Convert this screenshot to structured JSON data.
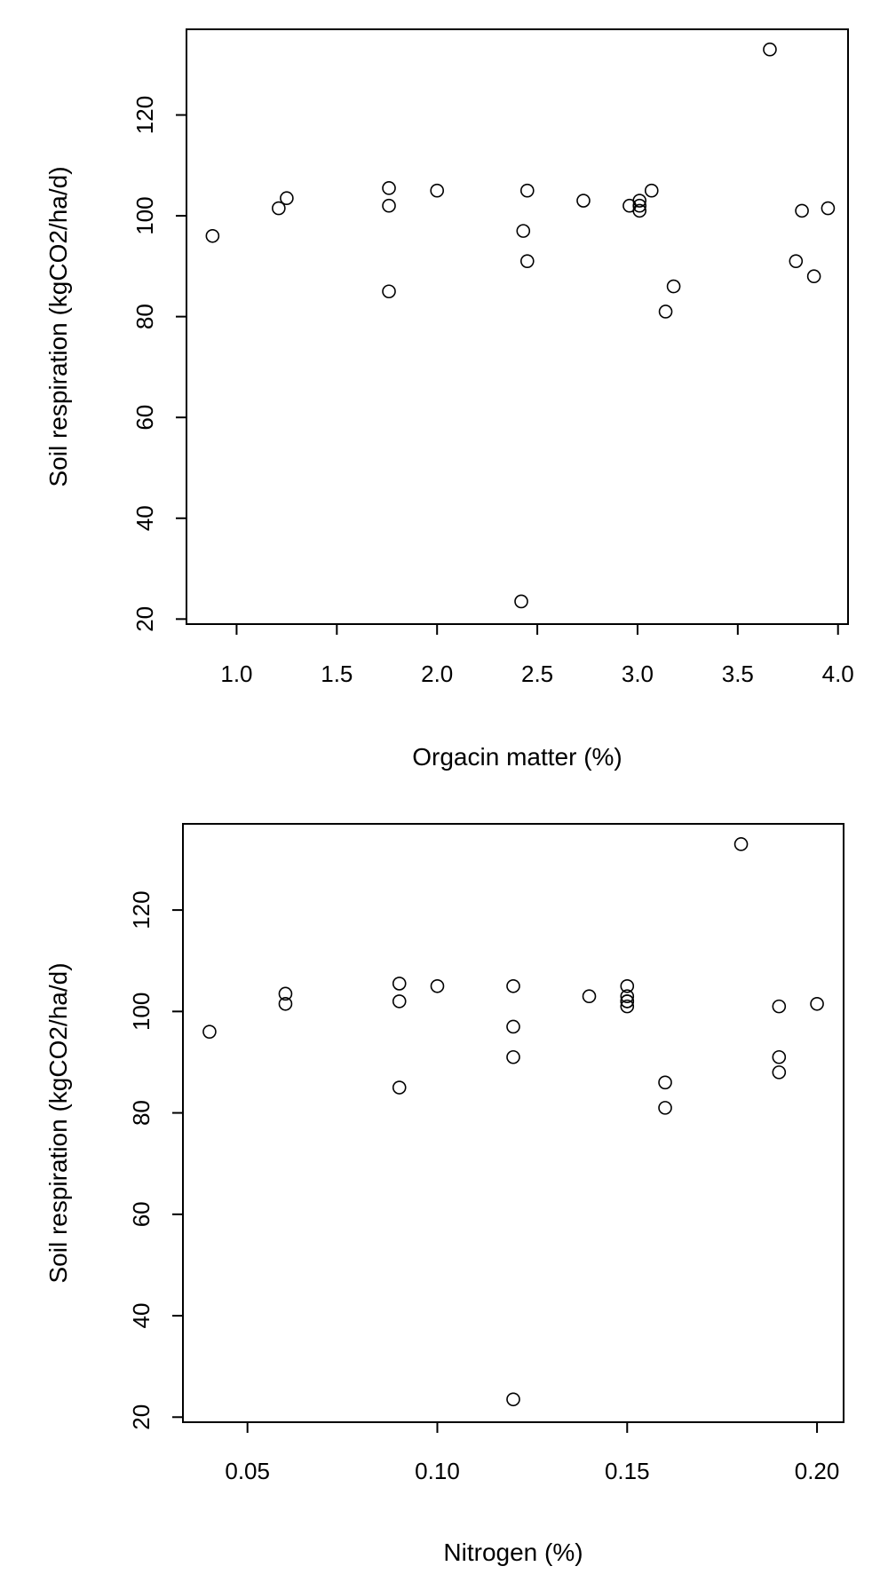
{
  "chart_data": [
    {
      "type": "scatter",
      "xlabel": "Orgacin matter (%)",
      "ylabel": "Soil respiration (kgCO2/ha/d)",
      "xlim": [
        0.75,
        4.05
      ],
      "ylim": [
        19,
        137
      ],
      "xticks": [
        1.0,
        1.5,
        2.0,
        2.5,
        3.0,
        3.5,
        4.0
      ],
      "xtick_labels": [
        "1.0",
        "1.5",
        "2.0",
        "2.5",
        "3.0",
        "3.5",
        "4.0"
      ],
      "yticks": [
        20,
        40,
        60,
        80,
        100,
        120
      ],
      "ytick_labels": [
        "20",
        "40",
        "60",
        "80",
        "100",
        "120"
      ],
      "x": [
        0.88,
        1.21,
        1.25,
        1.76,
        1.76,
        1.76,
        2.0,
        2.42,
        2.43,
        2.45,
        2.45,
        2.73,
        2.96,
        3.01,
        3.01,
        3.01,
        3.07,
        3.14,
        3.18,
        3.66,
        3.79,
        3.82,
        3.88,
        3.95
      ],
      "y": [
        96,
        101.5,
        103.5,
        105.5,
        102,
        85,
        105,
        23.5,
        97,
        105,
        91,
        103,
        102,
        103,
        101,
        102,
        105,
        81,
        86,
        133,
        91,
        101,
        88,
        101.5
      ]
    },
    {
      "type": "scatter",
      "xlabel": "Nitrogen (%)",
      "ylabel": "Soil respiration (kgCO2/ha/d)",
      "xlim": [
        0.033,
        0.207
      ],
      "ylim": [
        19,
        137
      ],
      "xticks": [
        0.05,
        0.1,
        0.15,
        0.2
      ],
      "xtick_labels": [
        "0.05",
        "0.10",
        "0.15",
        "0.20"
      ],
      "yticks": [
        20,
        40,
        60,
        80,
        100,
        120
      ],
      "ytick_labels": [
        "20",
        "40",
        "60",
        "80",
        "100",
        "120"
      ],
      "x": [
        0.04,
        0.06,
        0.06,
        0.09,
        0.09,
        0.09,
        0.1,
        0.12,
        0.12,
        0.12,
        0.12,
        0.14,
        0.15,
        0.15,
        0.15,
        0.15,
        0.15,
        0.16,
        0.16,
        0.18,
        0.19,
        0.19,
        0.19,
        0.2
      ],
      "y": [
        96,
        101.5,
        103.5,
        105.5,
        102,
        85,
        105,
        23.5,
        97,
        105,
        91,
        103,
        102,
        103,
        101,
        102,
        105,
        81,
        86,
        133,
        91,
        101,
        88,
        101.5
      ]
    }
  ]
}
